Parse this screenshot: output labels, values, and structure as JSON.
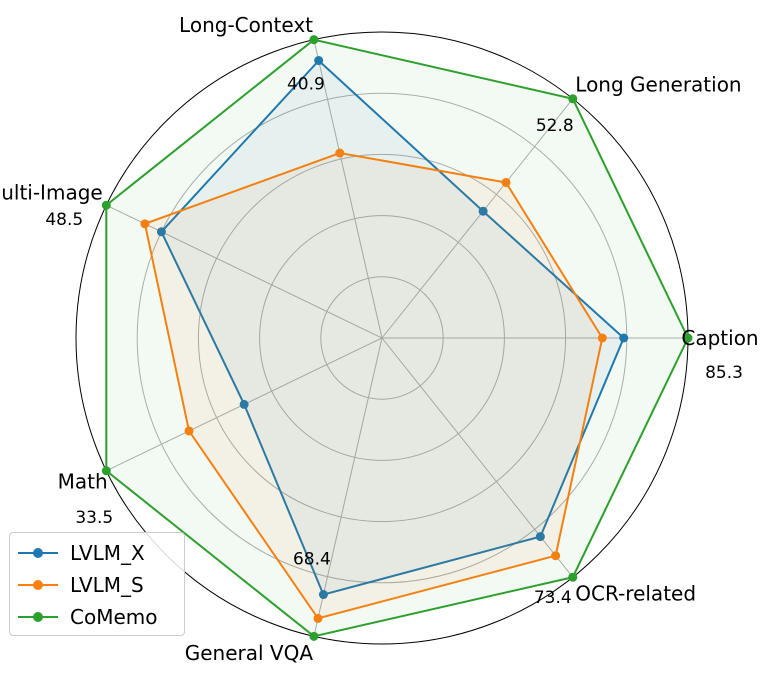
{
  "chart_data": {
    "type": "radar",
    "axes": [
      "Caption",
      "Long Generation",
      "Long-Context",
      "Multi-Image",
      "Math",
      "General VQA",
      "OCR-related"
    ],
    "axis_max_labels": [
      "85.3",
      "52.8",
      "40.9",
      "48.5",
      "33.5",
      "68.4",
      "73.4"
    ],
    "r_max": 1.0,
    "grid_levels": [
      0.2,
      0.4,
      0.6,
      0.8
    ],
    "grid": true,
    "legend_position": "bottom-left",
    "series": [
      {
        "name": "LVLM_X",
        "color": "#1f77b4",
        "values": [
          0.79,
          0.53,
          0.93,
          0.8,
          0.5,
          0.86,
          0.83
        ]
      },
      {
        "name": "LVLM_S",
        "color": "#ff7f0e",
        "values": [
          0.72,
          0.65,
          0.62,
          0.86,
          0.7,
          0.94,
          0.91
        ]
      },
      {
        "name": "CoMemo",
        "color": "#2ca02c",
        "values": [
          1.0,
          1.0,
          1.0,
          1.0,
          1.0,
          1.0,
          1.0
        ]
      }
    ]
  }
}
